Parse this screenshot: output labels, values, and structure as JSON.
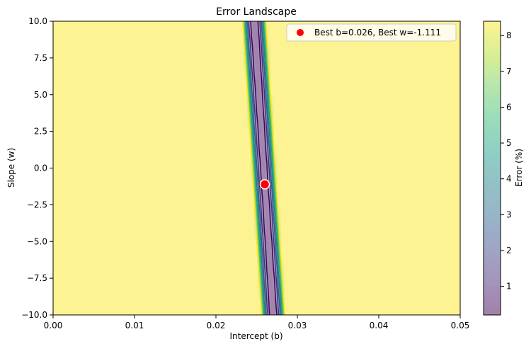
{
  "chart_data": {
    "type": "contour",
    "title": "Error Landscape",
    "xlabel": "Intercept (b)",
    "ylabel": "Slope (w)",
    "xlim": [
      0.0,
      0.05
    ],
    "ylim": [
      -10.0,
      10.0
    ],
    "x_ticks": [
      "0.00",
      "0.01",
      "0.02",
      "0.03",
      "0.04",
      "0.05"
    ],
    "y_ticks": [
      "10.0",
      "7.5",
      "5.0",
      "2.5",
      "0.0",
      "−2.5",
      "−5.0",
      "−7.5",
      "−10.0"
    ],
    "grid": false,
    "colormap": "viridis",
    "colorbar": {
      "label": "Error (%)",
      "range": [
        0.2,
        8.4
      ],
      "ticks": [
        "1",
        "2",
        "3",
        "4",
        "5",
        "6",
        "7",
        "8"
      ]
    },
    "contour_levels": [
      1.0,
      2.0,
      3.0,
      4.0,
      5.0,
      6.0,
      7.0,
      8.0
    ],
    "best_point": {
      "b": 0.026,
      "w": -1.111,
      "color": "#ff0000"
    },
    "legend": {
      "position": "top-right",
      "entries": [
        "Best b=0.026, Best w=-1.111"
      ]
    }
  }
}
